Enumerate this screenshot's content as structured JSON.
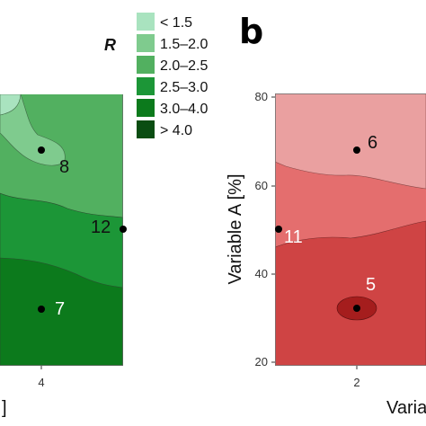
{
  "legend": {
    "title": "R",
    "items": [
      {
        "label": "< 1.5",
        "color": "#a9e3bf"
      },
      {
        "label": "1.5–2.0",
        "color": "#7fcb8e"
      },
      {
        "label": "2.0–2.5",
        "color": "#52b060"
      },
      {
        "label": "2.5–3.0",
        "color": "#1c9637"
      },
      {
        "label": "3.0–4.0",
        "color": "#0c7a1c"
      },
      {
        "label": "> 4.0",
        "color": "#0a4d12"
      }
    ]
  },
  "chart_data": [
    {
      "type": "contour",
      "panel": "",
      "xlabel": "",
      "ylabel": "",
      "xticks": [
        "4"
      ],
      "bottom_left_fragment": "]",
      "points": [
        {
          "label": "8",
          "x": 4,
          "y": 0
        },
        {
          "label": "12",
          "x": 0,
          "y": 0
        },
        {
          "label": "7",
          "x": 4,
          "y": 0
        }
      ],
      "region_colors": [
        "#a9e3bf",
        "#7fcb8e",
        "#52b060",
        "#1c9637",
        "#0c7a1c",
        "#0a4d12"
      ]
    },
    {
      "type": "contour",
      "panel": "b",
      "xlabel": "Varia",
      "ylabel": "Variable A [%]",
      "xticks": [
        "2"
      ],
      "yticks": [
        "20",
        "40",
        "60",
        "80"
      ],
      "ylim": [
        20,
        82
      ],
      "points": [
        {
          "label": "6",
          "x": 2,
          "y": 68
        },
        {
          "label": "11",
          "x": 0,
          "y": 50
        },
        {
          "label": "5",
          "x": 2,
          "y": 32
        }
      ],
      "region_colors": [
        "#eaa0a0",
        "#e46e6e",
        "#cf4444",
        "#a51d1d"
      ]
    }
  ]
}
